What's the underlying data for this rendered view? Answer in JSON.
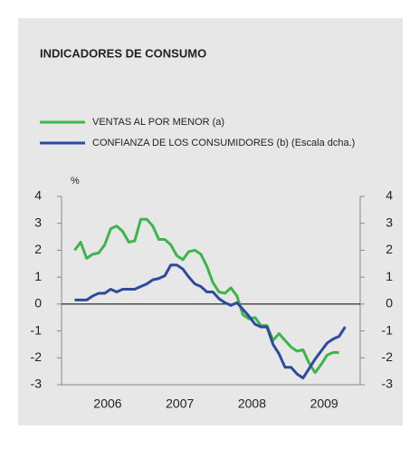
{
  "chart_data": {
    "type": "line",
    "title": "INDICADORES DE CONSUMO",
    "y_label": "%",
    "x": [
      2006.042,
      2006.125,
      2006.208,
      2006.292,
      2006.375,
      2006.458,
      2006.542,
      2006.625,
      2006.708,
      2006.792,
      2006.875,
      2006.958,
      2007.042,
      2007.125,
      2007.208,
      2007.292,
      2007.375,
      2007.458,
      2007.542,
      2007.625,
      2007.708,
      2007.792,
      2007.875,
      2007.958,
      2008.042,
      2008.125,
      2008.208,
      2008.292,
      2008.375,
      2008.458,
      2008.542,
      2008.625,
      2008.708,
      2008.792,
      2008.875,
      2008.958,
      2009.042,
      2009.125,
      2009.208,
      2009.292,
      2009.375,
      2009.458,
      2009.542,
      2009.625,
      2009.708,
      2009.792
    ],
    "series": [
      {
        "name": "VENTAS AL POR MENOR (a)",
        "color": "#3db54a",
        "values": [
          2.0,
          2.3,
          1.7,
          1.85,
          1.9,
          2.2,
          2.8,
          2.9,
          2.7,
          2.3,
          2.35,
          3.15,
          3.15,
          2.9,
          2.4,
          2.4,
          2.2,
          1.8,
          1.65,
          1.95,
          2.0,
          1.85,
          1.4,
          0.8,
          0.45,
          0.4,
          0.6,
          0.3,
          -0.4,
          -0.55,
          -0.5,
          -0.8,
          -0.8,
          -1.35,
          -1.1,
          -1.35,
          -1.6,
          -1.75,
          -1.7,
          -2.2,
          -2.55,
          -2.25,
          -1.9,
          -1.8,
          -1.8,
          null
        ]
      },
      {
        "name": "CONFIANZA DE LOS CONSUMIDORES (b) (Escala dcha.)",
        "color": "#2f4a9c",
        "axis": "y2",
        "values": [
          0.15,
          0.15,
          0.15,
          0.3,
          0.4,
          0.4,
          0.55,
          0.45,
          0.55,
          0.55,
          0.55,
          0.65,
          0.75,
          0.9,
          0.95,
          1.05,
          1.45,
          1.45,
          1.3,
          1.0,
          0.75,
          0.65,
          0.45,
          0.45,
          0.2,
          0.05,
          -0.05,
          0.05,
          -0.2,
          -0.45,
          -0.75,
          -0.85,
          -0.85,
          -1.5,
          -1.85,
          -2.35,
          -2.35,
          -2.6,
          -2.75,
          -2.4,
          -2.05,
          -1.75,
          -1.45,
          -1.3,
          -1.2,
          -0.85
        ]
      }
    ],
    "xlim": [
      2005.86,
      2010.0
    ],
    "xticks": [
      {
        "value": 2006.5,
        "label": "2006"
      },
      {
        "value": 2007.5,
        "label": "2007"
      },
      {
        "value": 2008.5,
        "label": "2008"
      },
      {
        "value": 2009.5,
        "label": "2009"
      }
    ],
    "ylim": [
      -3,
      4
    ],
    "yticks": [
      -3,
      -2,
      -1,
      0,
      1,
      2,
      3,
      4
    ],
    "y2lim": [
      -3,
      4
    ],
    "y2ticks": [
      -3,
      -2,
      -1,
      0,
      1,
      2,
      3,
      4
    ],
    "zero_line": 0
  }
}
